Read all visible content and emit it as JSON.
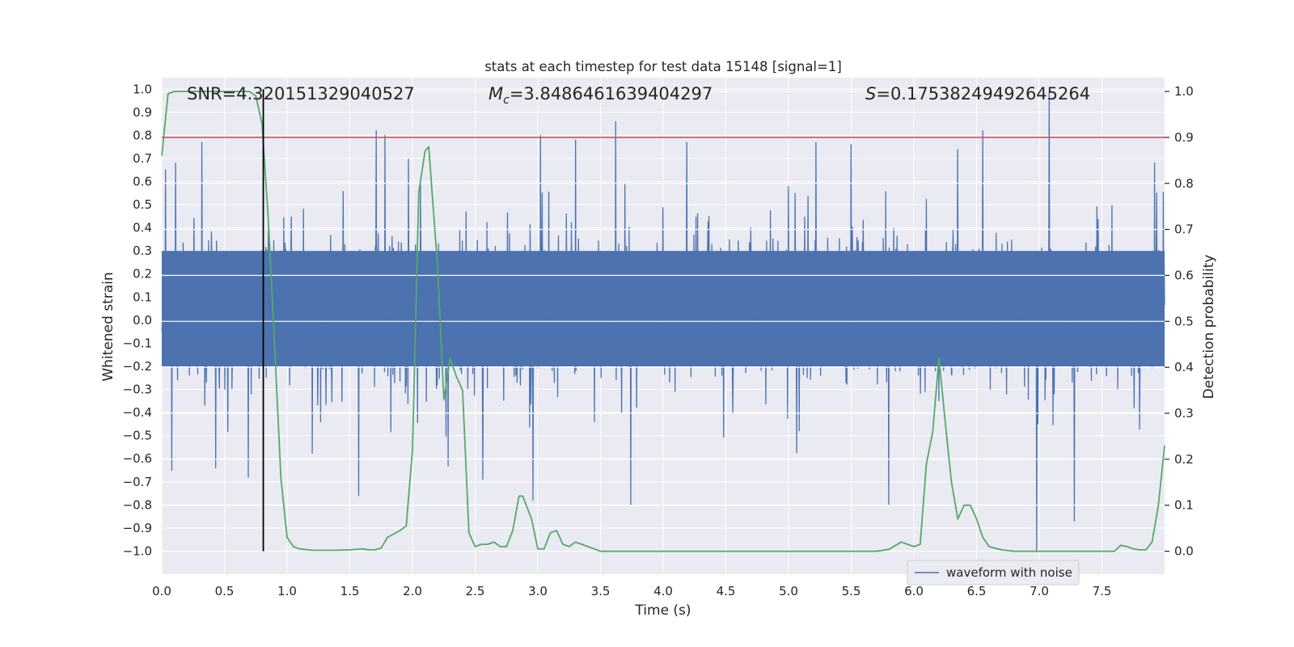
{
  "chart_data": {
    "type": "line",
    "title": "stats at each timestep for test data 15148 [signal=1]",
    "xlabel": "Time (s)",
    "ylabel_left": "Whitened strain",
    "ylabel_right": "Detection probability",
    "xlim": [
      0.0,
      8.0
    ],
    "ylim_left": [
      -1.1,
      1.05
    ],
    "ylim_right": [
      -0.05,
      1.03
    ],
    "x_ticks": [
      "0.0",
      "0.5",
      "1.0",
      "1.5",
      "2.0",
      "2.5",
      "3.0",
      "3.5",
      "4.0",
      "4.5",
      "5.0",
      "5.5",
      "6.0",
      "6.5",
      "7.0",
      "7.5"
    ],
    "y_left_ticks": [
      "1.0",
      "0.9",
      "0.8",
      "0.7",
      "0.6",
      "0.5",
      "0.4",
      "0.3",
      "0.2",
      "0.1",
      "0.0",
      "-0.1",
      "-0.2",
      "-0.3",
      "-0.4",
      "-0.5",
      "-0.6",
      "-0.7",
      "-0.8",
      "-0.9",
      "-1.0"
    ],
    "y_right_ticks": [
      "1.0",
      "0.9",
      "0.8",
      "0.7",
      "0.6",
      "0.5",
      "0.4",
      "0.3",
      "0.2",
      "0.1",
      "0.0"
    ],
    "grid": true,
    "legend_position": "bottom-right",
    "annotations": {
      "snr_label": "SNR=4.320151329040527",
      "mc_symbol": "M",
      "mc_subscript": "c",
      "mc_value": "=3.8486461639404297",
      "s_symbol": "S",
      "s_value": "=0.17538249492645264"
    },
    "threshold": {
      "value_right": 0.9,
      "color": "#c44e52"
    },
    "marker_line": {
      "x": 0.81,
      "y_range_left": [
        -1.0,
        1.0
      ],
      "color": "#000000"
    },
    "series": [
      {
        "name": "waveform with noise",
        "axis": "left",
        "color": "#4c72b0",
        "duration": 8.0,
        "core_band": [
          -0.2,
          0.3
        ],
        "notable_peaks": [
          {
            "x": 0.03,
            "y": 0.65
          },
          {
            "x": 0.08,
            "y": -0.65
          },
          {
            "x": 0.11,
            "y": 0.68
          },
          {
            "x": 0.32,
            "y": 0.77
          },
          {
            "x": 0.43,
            "y": -0.64
          },
          {
            "x": 0.69,
            "y": -0.68
          },
          {
            "x": 1.71,
            "y": 0.82
          },
          {
            "x": 1.78,
            "y": 0.8
          },
          {
            "x": 1.57,
            "y": -0.76
          },
          {
            "x": 2.56,
            "y": -0.69
          },
          {
            "x": 2.96,
            "y": -0.78
          },
          {
            "x": 3.02,
            "y": 0.8
          },
          {
            "x": 3.3,
            "y": 0.78
          },
          {
            "x": 3.62,
            "y": 0.86
          },
          {
            "x": 3.74,
            "y": -0.8
          },
          {
            "x": 4.19,
            "y": 0.77
          },
          {
            "x": 5.22,
            "y": 0.77
          },
          {
            "x": 5.5,
            "y": 0.76
          },
          {
            "x": 5.8,
            "y": -0.8
          },
          {
            "x": 6.35,
            "y": 0.74
          },
          {
            "x": 6.55,
            "y": 0.82
          },
          {
            "x": 6.98,
            "y": -1.0
          },
          {
            "x": 7.08,
            "y": 0.99
          },
          {
            "x": 7.28,
            "y": -0.87
          },
          {
            "x": 7.92,
            "y": 0.68
          }
        ]
      },
      {
        "name": "",
        "axis": "right",
        "color": "#55a868",
        "x": [
          0.0,
          0.05,
          0.1,
          0.2,
          0.3,
          0.4,
          0.5,
          0.6,
          0.7,
          0.75,
          0.8,
          0.85,
          0.9,
          0.95,
          1.0,
          1.05,
          1.1,
          1.2,
          1.3,
          1.4,
          1.5,
          1.6,
          1.65,
          1.7,
          1.75,
          1.8,
          1.9,
          1.95,
          2.0,
          2.05,
          2.1,
          2.13,
          2.2,
          2.25,
          2.3,
          2.35,
          2.4,
          2.45,
          2.5,
          2.55,
          2.6,
          2.65,
          2.7,
          2.75,
          2.8,
          2.85,
          2.88,
          2.95,
          3.0,
          3.05,
          3.1,
          3.15,
          3.2,
          3.25,
          3.3,
          3.35,
          3.4,
          3.45,
          3.5,
          3.6,
          3.7,
          3.8,
          3.9,
          4.0,
          4.5,
          5.0,
          5.5,
          5.7,
          5.8,
          5.9,
          6.0,
          6.05,
          6.1,
          6.15,
          6.2,
          6.25,
          6.3,
          6.35,
          6.4,
          6.45,
          6.5,
          6.55,
          6.6,
          6.7,
          6.8,
          6.9,
          7.0,
          7.2,
          7.4,
          7.5,
          7.6,
          7.65,
          7.7,
          7.75,
          7.8,
          7.85,
          7.9,
          7.95,
          8.0
        ],
        "values": [
          0.86,
          0.995,
          1.0,
          1.0,
          1.0,
          1.0,
          1.0,
          1.0,
          1.0,
          0.99,
          0.93,
          0.72,
          0.45,
          0.16,
          0.03,
          0.01,
          0.005,
          0.002,
          0.002,
          0.002,
          0.003,
          0.005,
          0.003,
          0.003,
          0.007,
          0.03,
          0.045,
          0.055,
          0.22,
          0.78,
          0.87,
          0.88,
          0.62,
          0.33,
          0.42,
          0.38,
          0.35,
          0.04,
          0.01,
          0.015,
          0.015,
          0.02,
          0.01,
          0.01,
          0.045,
          0.12,
          0.12,
          0.07,
          0.005,
          0.005,
          0.04,
          0.045,
          0.015,
          0.01,
          0.02,
          0.015,
          0.01,
          0.005,
          0.0,
          0.0,
          0.0,
          0.0,
          0.0,
          0.0,
          0.0,
          0.0,
          0.0,
          0.0,
          0.004,
          0.02,
          0.01,
          0.015,
          0.19,
          0.26,
          0.42,
          0.28,
          0.15,
          0.07,
          0.1,
          0.1,
          0.07,
          0.03,
          0.01,
          0.003,
          0.0,
          0.0,
          0.0,
          0.0,
          0.0,
          0.0,
          0.0,
          0.013,
          0.01,
          0.005,
          0.003,
          0.003,
          0.02,
          0.1,
          0.23
        ]
      }
    ]
  }
}
